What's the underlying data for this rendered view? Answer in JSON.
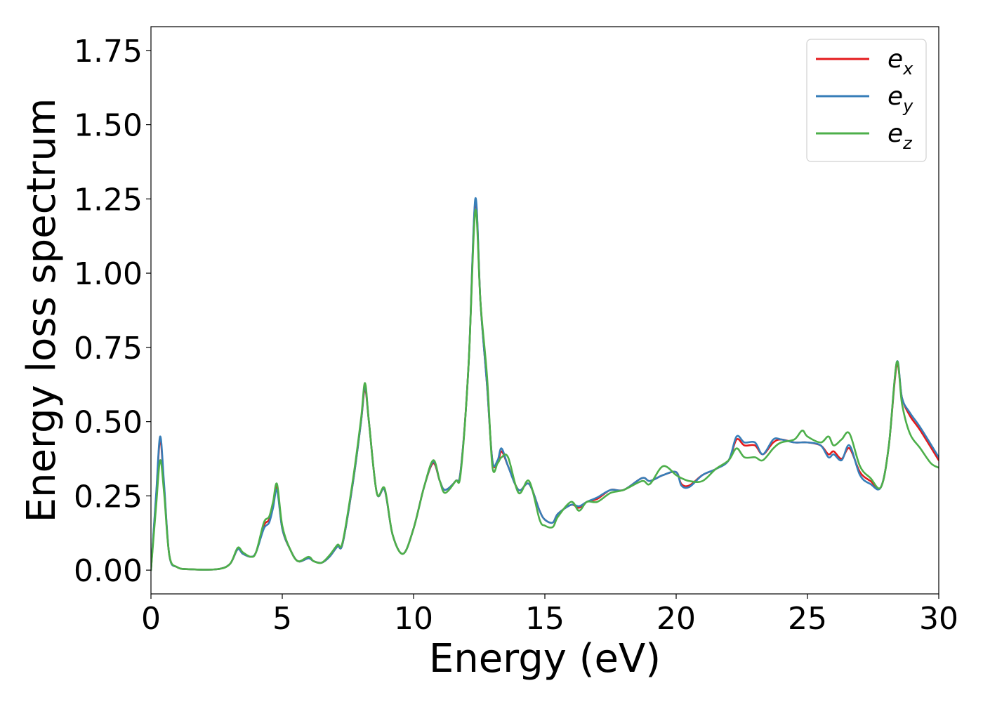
{
  "chart_data": {
    "type": "line",
    "xlabel": "Energy (eV)",
    "ylabel": "Energy loss spectrum",
    "xlim": [
      0,
      30
    ],
    "ylim": [
      -0.08,
      1.83
    ],
    "xticks": [
      0,
      5,
      10,
      15,
      20,
      25,
      30
    ],
    "yticks": [
      0.0,
      0.25,
      0.5,
      0.75,
      1.0,
      1.25,
      1.5,
      1.75
    ],
    "xtick_labels": [
      "0",
      "5",
      "10",
      "15",
      "20",
      "25",
      "30"
    ],
    "ytick_labels": [
      "0.00",
      "0.25",
      "0.50",
      "0.75",
      "1.00",
      "1.25",
      "1.50",
      "1.75"
    ],
    "grid": false,
    "legend_position": "top-right",
    "series": [
      {
        "name": "e_x",
        "label_base": "e",
        "label_sub": "x",
        "color": "#e41a1c",
        "points": [
          [
            0,
            0.0
          ],
          [
            0.2,
            0.25
          ],
          [
            0.35,
            0.44
          ],
          [
            0.5,
            0.28
          ],
          [
            0.7,
            0.05
          ],
          [
            1.0,
            0.01
          ],
          [
            1.5,
            0.003
          ],
          [
            2.5,
            0.003
          ],
          [
            3.0,
            0.02
          ],
          [
            3.3,
            0.07
          ],
          [
            3.5,
            0.055
          ],
          [
            3.8,
            0.045
          ],
          [
            4.0,
            0.06
          ],
          [
            4.3,
            0.15
          ],
          [
            4.5,
            0.17
          ],
          [
            4.65,
            0.22
          ],
          [
            4.8,
            0.28
          ],
          [
            5.0,
            0.14
          ],
          [
            5.3,
            0.07
          ],
          [
            5.6,
            0.03
          ],
          [
            6.0,
            0.04
          ],
          [
            6.2,
            0.03
          ],
          [
            6.5,
            0.025
          ],
          [
            6.8,
            0.045
          ],
          [
            7.1,
            0.08
          ],
          [
            7.3,
            0.09
          ],
          [
            7.7,
            0.3
          ],
          [
            8.0,
            0.5
          ],
          [
            8.15,
            0.61
          ],
          [
            8.3,
            0.5
          ],
          [
            8.6,
            0.26
          ],
          [
            8.9,
            0.27
          ],
          [
            9.2,
            0.12
          ],
          [
            9.6,
            0.055
          ],
          [
            10.0,
            0.14
          ],
          [
            10.4,
            0.28
          ],
          [
            10.75,
            0.36
          ],
          [
            11.0,
            0.3
          ],
          [
            11.2,
            0.27
          ],
          [
            11.6,
            0.3
          ],
          [
            11.8,
            0.34
          ],
          [
            12.1,
            0.7
          ],
          [
            12.35,
            1.24
          ],
          [
            12.55,
            0.9
          ],
          [
            12.8,
            0.62
          ],
          [
            13.0,
            0.37
          ],
          [
            13.2,
            0.36
          ],
          [
            13.35,
            0.4
          ],
          [
            13.6,
            0.35
          ],
          [
            14.0,
            0.27
          ],
          [
            14.4,
            0.29
          ],
          [
            14.8,
            0.2
          ],
          [
            15.0,
            0.17
          ],
          [
            15.3,
            0.16
          ],
          [
            15.5,
            0.19
          ],
          [
            16.0,
            0.22
          ],
          [
            16.3,
            0.21
          ],
          [
            16.6,
            0.23
          ],
          [
            17.0,
            0.24
          ],
          [
            17.5,
            0.27
          ],
          [
            18.0,
            0.27
          ],
          [
            18.7,
            0.31
          ],
          [
            19.0,
            0.3
          ],
          [
            19.5,
            0.32
          ],
          [
            20.0,
            0.33
          ],
          [
            20.2,
            0.29
          ],
          [
            20.5,
            0.285
          ],
          [
            21.0,
            0.32
          ],
          [
            21.5,
            0.34
          ],
          [
            22.0,
            0.37
          ],
          [
            22.3,
            0.44
          ],
          [
            22.6,
            0.42
          ],
          [
            23.0,
            0.42
          ],
          [
            23.3,
            0.39
          ],
          [
            23.7,
            0.43
          ],
          [
            24.0,
            0.44
          ],
          [
            24.5,
            0.43
          ],
          [
            25.0,
            0.43
          ],
          [
            25.5,
            0.42
          ],
          [
            25.8,
            0.39
          ],
          [
            26.0,
            0.4
          ],
          [
            26.3,
            0.375
          ],
          [
            26.6,
            0.41
          ],
          [
            27.0,
            0.33
          ],
          [
            27.4,
            0.3
          ],
          [
            27.8,
            0.28
          ],
          [
            28.1,
            0.42
          ],
          [
            28.4,
            0.69
          ],
          [
            28.6,
            0.58
          ],
          [
            28.9,
            0.52
          ],
          [
            29.3,
            0.47
          ],
          [
            30,
            0.37
          ]
        ]
      },
      {
        "name": "e_y",
        "label_base": "e",
        "label_sub": "y",
        "color": "#377eb8",
        "points": [
          [
            0,
            0.0
          ],
          [
            0.2,
            0.26
          ],
          [
            0.35,
            0.45
          ],
          [
            0.5,
            0.29
          ],
          [
            0.7,
            0.05
          ],
          [
            1.0,
            0.01
          ],
          [
            1.5,
            0.003
          ],
          [
            2.5,
            0.003
          ],
          [
            3.0,
            0.02
          ],
          [
            3.3,
            0.07
          ],
          [
            3.5,
            0.055
          ],
          [
            3.8,
            0.045
          ],
          [
            4.0,
            0.06
          ],
          [
            4.3,
            0.14
          ],
          [
            4.5,
            0.16
          ],
          [
            4.65,
            0.21
          ],
          [
            4.8,
            0.27
          ],
          [
            5.0,
            0.14
          ],
          [
            5.3,
            0.07
          ],
          [
            5.6,
            0.03
          ],
          [
            6.0,
            0.04
          ],
          [
            6.2,
            0.03
          ],
          [
            6.5,
            0.025
          ],
          [
            6.8,
            0.045
          ],
          [
            7.1,
            0.08
          ],
          [
            7.3,
            0.09
          ],
          [
            7.7,
            0.3
          ],
          [
            8.0,
            0.5
          ],
          [
            8.15,
            0.62
          ],
          [
            8.3,
            0.5
          ],
          [
            8.6,
            0.26
          ],
          [
            8.9,
            0.27
          ],
          [
            9.2,
            0.12
          ],
          [
            9.6,
            0.055
          ],
          [
            10.0,
            0.14
          ],
          [
            10.4,
            0.28
          ],
          [
            10.75,
            0.365
          ],
          [
            11.0,
            0.3
          ],
          [
            11.2,
            0.27
          ],
          [
            11.6,
            0.3
          ],
          [
            11.8,
            0.34
          ],
          [
            12.1,
            0.7
          ],
          [
            12.35,
            1.25
          ],
          [
            12.55,
            0.9
          ],
          [
            12.8,
            0.62
          ],
          [
            13.0,
            0.37
          ],
          [
            13.2,
            0.37
          ],
          [
            13.35,
            0.41
          ],
          [
            13.6,
            0.35
          ],
          [
            14.0,
            0.27
          ],
          [
            14.4,
            0.29
          ],
          [
            14.8,
            0.2
          ],
          [
            15.0,
            0.17
          ],
          [
            15.3,
            0.16
          ],
          [
            15.5,
            0.19
          ],
          [
            16.0,
            0.22
          ],
          [
            16.3,
            0.215
          ],
          [
            16.6,
            0.23
          ],
          [
            17.0,
            0.245
          ],
          [
            17.5,
            0.27
          ],
          [
            18.0,
            0.27
          ],
          [
            18.7,
            0.31
          ],
          [
            19.0,
            0.3
          ],
          [
            19.5,
            0.32
          ],
          [
            20.0,
            0.33
          ],
          [
            20.2,
            0.285
          ],
          [
            20.5,
            0.28
          ],
          [
            21.0,
            0.32
          ],
          [
            21.5,
            0.34
          ],
          [
            22.0,
            0.37
          ],
          [
            22.3,
            0.45
          ],
          [
            22.6,
            0.43
          ],
          [
            23.0,
            0.43
          ],
          [
            23.3,
            0.39
          ],
          [
            23.7,
            0.44
          ],
          [
            24.0,
            0.44
          ],
          [
            24.5,
            0.43
          ],
          [
            25.0,
            0.43
          ],
          [
            25.5,
            0.42
          ],
          [
            25.8,
            0.38
          ],
          [
            26.0,
            0.39
          ],
          [
            26.3,
            0.37
          ],
          [
            26.6,
            0.42
          ],
          [
            27.0,
            0.32
          ],
          [
            27.4,
            0.29
          ],
          [
            27.8,
            0.28
          ],
          [
            28.1,
            0.42
          ],
          [
            28.4,
            0.7
          ],
          [
            28.6,
            0.58
          ],
          [
            28.9,
            0.53
          ],
          [
            29.3,
            0.48
          ],
          [
            30,
            0.38
          ]
        ]
      },
      {
        "name": "e_z",
        "label_base": "e",
        "label_sub": "z",
        "color": "#4daf4a",
        "points": [
          [
            0,
            0.0
          ],
          [
            0.2,
            0.22
          ],
          [
            0.35,
            0.37
          ],
          [
            0.5,
            0.26
          ],
          [
            0.7,
            0.05
          ],
          [
            1.0,
            0.01
          ],
          [
            1.5,
            0.003
          ],
          [
            2.5,
            0.003
          ],
          [
            3.0,
            0.02
          ],
          [
            3.3,
            0.075
          ],
          [
            3.5,
            0.06
          ],
          [
            3.8,
            0.045
          ],
          [
            4.0,
            0.06
          ],
          [
            4.3,
            0.16
          ],
          [
            4.5,
            0.18
          ],
          [
            4.65,
            0.23
          ],
          [
            4.8,
            0.29
          ],
          [
            5.0,
            0.15
          ],
          [
            5.3,
            0.07
          ],
          [
            5.6,
            0.03
          ],
          [
            6.0,
            0.045
          ],
          [
            6.2,
            0.03
          ],
          [
            6.5,
            0.025
          ],
          [
            6.8,
            0.05
          ],
          [
            7.1,
            0.085
          ],
          [
            7.3,
            0.095
          ],
          [
            7.7,
            0.31
          ],
          [
            8.0,
            0.51
          ],
          [
            8.15,
            0.63
          ],
          [
            8.3,
            0.5
          ],
          [
            8.6,
            0.26
          ],
          [
            8.9,
            0.275
          ],
          [
            9.2,
            0.12
          ],
          [
            9.6,
            0.055
          ],
          [
            10.0,
            0.14
          ],
          [
            10.4,
            0.28
          ],
          [
            10.75,
            0.37
          ],
          [
            11.0,
            0.3
          ],
          [
            11.2,
            0.26
          ],
          [
            11.6,
            0.3
          ],
          [
            11.8,
            0.33
          ],
          [
            12.1,
            0.7
          ],
          [
            12.35,
            1.21
          ],
          [
            12.55,
            0.9
          ],
          [
            12.8,
            0.65
          ],
          [
            13.0,
            0.35
          ],
          [
            13.2,
            0.36
          ],
          [
            13.35,
            0.38
          ],
          [
            13.6,
            0.38
          ],
          [
            14.0,
            0.26
          ],
          [
            14.4,
            0.3
          ],
          [
            14.8,
            0.17
          ],
          [
            15.0,
            0.15
          ],
          [
            15.3,
            0.145
          ],
          [
            15.5,
            0.18
          ],
          [
            16.0,
            0.23
          ],
          [
            16.3,
            0.2
          ],
          [
            16.6,
            0.23
          ],
          [
            17.0,
            0.23
          ],
          [
            17.5,
            0.26
          ],
          [
            18.0,
            0.27
          ],
          [
            18.7,
            0.3
          ],
          [
            19.0,
            0.29
          ],
          [
            19.5,
            0.35
          ],
          [
            20.0,
            0.32
          ],
          [
            20.2,
            0.31
          ],
          [
            20.5,
            0.3
          ],
          [
            21.0,
            0.3
          ],
          [
            21.5,
            0.34
          ],
          [
            22.0,
            0.37
          ],
          [
            22.3,
            0.41
          ],
          [
            22.6,
            0.38
          ],
          [
            23.0,
            0.38
          ],
          [
            23.3,
            0.37
          ],
          [
            23.7,
            0.41
          ],
          [
            24.0,
            0.43
          ],
          [
            24.5,
            0.44
          ],
          [
            24.8,
            0.47
          ],
          [
            25.0,
            0.45
          ],
          [
            25.5,
            0.43
          ],
          [
            25.8,
            0.45
          ],
          [
            26.0,
            0.42
          ],
          [
            26.3,
            0.44
          ],
          [
            26.6,
            0.46
          ],
          [
            27.0,
            0.35
          ],
          [
            27.4,
            0.31
          ],
          [
            27.8,
            0.28
          ],
          [
            28.1,
            0.42
          ],
          [
            28.4,
            0.7
          ],
          [
            28.6,
            0.56
          ],
          [
            28.9,
            0.46
          ],
          [
            29.3,
            0.41
          ],
          [
            29.7,
            0.36
          ],
          [
            30,
            0.345
          ]
        ]
      }
    ]
  }
}
